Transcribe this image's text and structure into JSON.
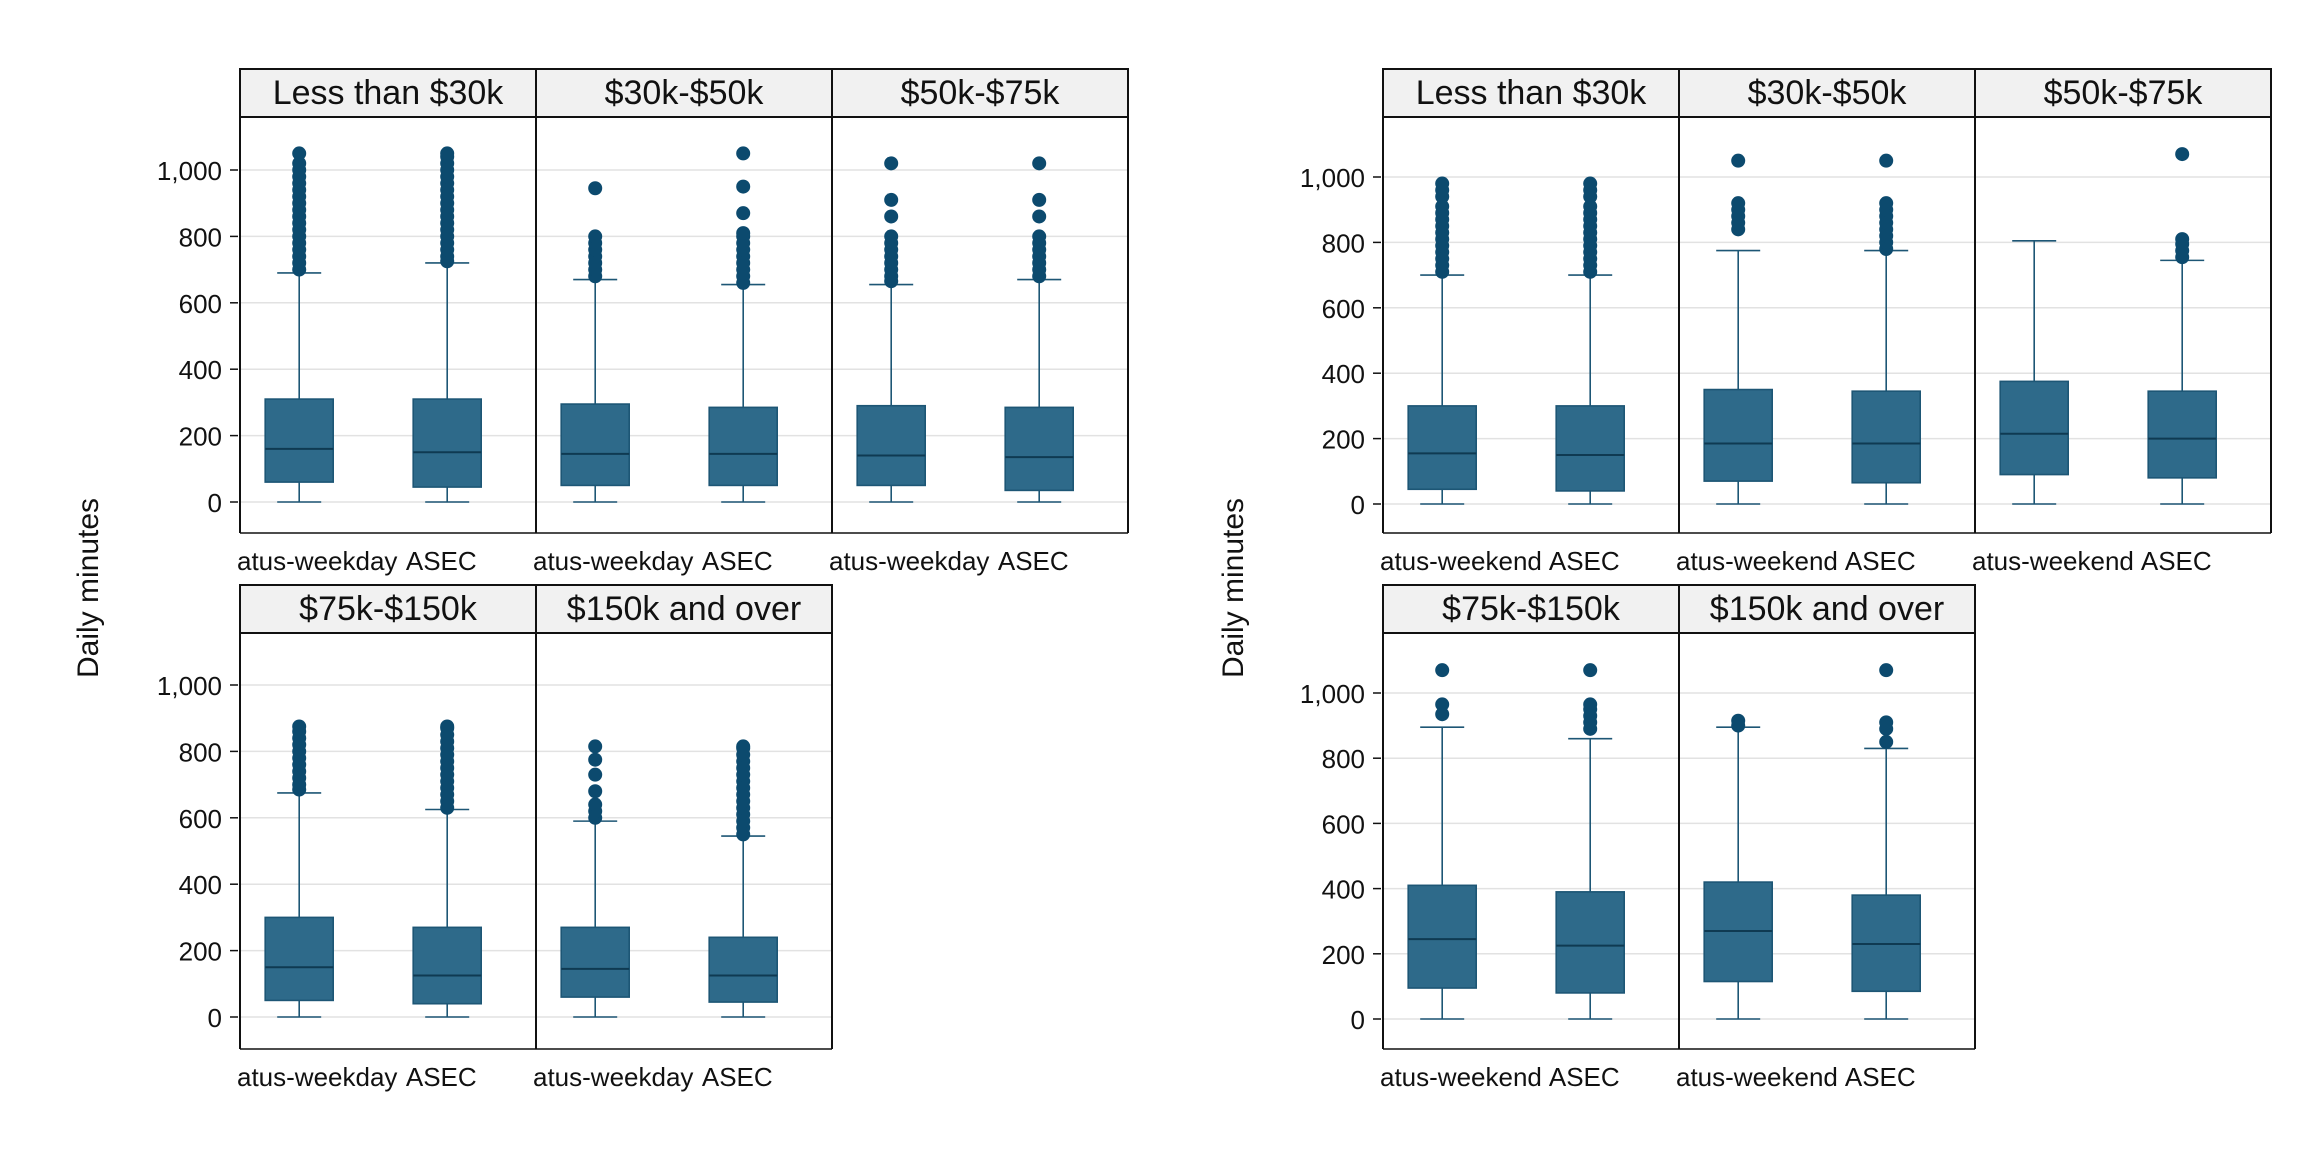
{
  "colors": {
    "box_fill": "#2e6a8a",
    "box_stroke": "#1d5675",
    "outlier": "#0c4a6e",
    "grid": "#e2e2e2",
    "strip_fill": "#f1f1f1",
    "frame": "#111111"
  },
  "chart_data": [
    {
      "type": "box",
      "ylabel": "Daily minutes",
      "yticks": [
        0,
        200,
        400,
        600,
        800,
        "1,000"
      ],
      "ylim": [
        -100,
        1110
      ],
      "categories": [
        "atus-weekday",
        "ASEC"
      ],
      "panels": [
        {
          "title": "Less than $30k",
          "boxes": [
            {
              "category": "atus-weekday",
              "min": 0,
              "q1": 60,
              "median": 160,
              "q3": 310,
              "whisker_high": 690,
              "outliers": [
                700,
                720,
                740,
                760,
                780,
                800,
                820,
                840,
                860,
                880,
                900,
                920,
                940,
                960,
                980,
                1000,
                1020,
                1050
              ]
            },
            {
              "category": "ASEC",
              "min": 0,
              "q1": 45,
              "median": 150,
              "q3": 310,
              "whisker_high": 720,
              "outliers": [
                725,
                740,
                760,
                780,
                800,
                820,
                840,
                860,
                880,
                900,
                920,
                940,
                960,
                980,
                1000,
                1020,
                1040,
                1050
              ]
            }
          ]
        },
        {
          "title": "$30k-$50k",
          "boxes": [
            {
              "category": "atus-weekday",
              "min": 0,
              "q1": 50,
              "median": 145,
              "q3": 295,
              "whisker_high": 670,
              "outliers": [
                680,
                700,
                720,
                740,
                760,
                780,
                800,
                945
              ]
            },
            {
              "category": "ASEC",
              "min": 0,
              "q1": 50,
              "median": 145,
              "q3": 285,
              "whisker_high": 655,
              "outliers": [
                660,
                680,
                700,
                720,
                740,
                760,
                780,
                800,
                810,
                870,
                950,
                1050
              ]
            }
          ]
        },
        {
          "title": "$50k-$75k",
          "boxes": [
            {
              "category": "atus-weekday",
              "min": 0,
              "q1": 50,
              "median": 140,
              "q3": 290,
              "whisker_high": 655,
              "outliers": [
                665,
                680,
                700,
                720,
                740,
                760,
                780,
                800,
                860,
                910,
                1020
              ]
            },
            {
              "category": "ASEC",
              "min": 0,
              "q1": 35,
              "median": 135,
              "q3": 285,
              "whisker_high": 670,
              "outliers": [
                680,
                700,
                720,
                740,
                760,
                780,
                800,
                860,
                910,
                1020
              ]
            }
          ]
        },
        {
          "title": "$75k-$150k",
          "boxes": [
            {
              "category": "atus-weekday",
              "min": 0,
              "q1": 50,
              "median": 150,
              "q3": 300,
              "whisker_high": 675,
              "outliers": [
                685,
                700,
                720,
                740,
                760,
                780,
                800,
                820,
                840,
                860,
                875
              ]
            },
            {
              "category": "ASEC",
              "min": 0,
              "q1": 40,
              "median": 125,
              "q3": 270,
              "whisker_high": 625,
              "outliers": [
                630,
                650,
                670,
                690,
                710,
                730,
                750,
                770,
                790,
                810,
                830,
                850,
                870,
                875
              ]
            }
          ]
        },
        {
          "title": "$150k and over",
          "boxes": [
            {
              "category": "atus-weekday",
              "min": 0,
              "q1": 60,
              "median": 145,
              "q3": 270,
              "whisker_high": 590,
              "outliers": [
                600,
                620,
                640,
                680,
                730,
                775,
                815
              ]
            },
            {
              "category": "ASEC",
              "min": 0,
              "q1": 45,
              "median": 125,
              "q3": 240,
              "whisker_high": 545,
              "outliers": [
                550,
                570,
                590,
                610,
                630,
                650,
                670,
                690,
                710,
                730,
                750,
                770,
                790,
                810,
                815
              ]
            }
          ]
        }
      ]
    },
    {
      "type": "box",
      "ylabel": "Daily minutes",
      "yticks": [
        0,
        200,
        400,
        600,
        800,
        "1,000"
      ],
      "ylim": [
        -100,
        1130
      ],
      "categories": [
        "atus-weekend",
        "ASEC"
      ],
      "panels": [
        {
          "title": "Less than $30k",
          "boxes": [
            {
              "category": "atus-weekend",
              "min": 0,
              "q1": 45,
              "median": 155,
              "q3": 300,
              "whisker_high": 700,
              "outliers": [
                710,
                730,
                750,
                770,
                790,
                810,
                830,
                850,
                870,
                890,
                910,
                940,
                960,
                980
              ]
            },
            {
              "category": "ASEC",
              "min": 0,
              "q1": 40,
              "median": 150,
              "q3": 300,
              "whisker_high": 700,
              "outliers": [
                710,
                730,
                750,
                770,
                790,
                810,
                830,
                850,
                870,
                890,
                910,
                940,
                960,
                980
              ]
            }
          ]
        },
        {
          "title": "$30k-$50k",
          "boxes": [
            {
              "category": "atus-weekend",
              "min": 0,
              "q1": 70,
              "median": 185,
              "q3": 350,
              "whisker_high": 775,
              "outliers": [
                840,
                860,
                880,
                900,
                920,
                1050
              ]
            },
            {
              "category": "ASEC",
              "min": 0,
              "q1": 65,
              "median": 185,
              "q3": 345,
              "whisker_high": 775,
              "outliers": [
                780,
                800,
                820,
                840,
                860,
                880,
                900,
                920,
                1050
              ]
            }
          ]
        },
        {
          "title": "$50k-$75k",
          "boxes": [
            {
              "category": "atus-weekend",
              "min": 0,
              "q1": 90,
              "median": 215,
              "q3": 375,
              "whisker_high": 805,
              "outliers": []
            },
            {
              "category": "ASEC",
              "min": 0,
              "q1": 80,
              "median": 200,
              "q3": 345,
              "whisker_high": 745,
              "outliers": [
                755,
                775,
                795,
                810,
                1070
              ]
            }
          ]
        },
        {
          "title": "$75k-$150k",
          "boxes": [
            {
              "category": "atus-weekend",
              "min": 0,
              "q1": 95,
              "median": 245,
              "q3": 410,
              "whisker_high": 895,
              "outliers": [
                935,
                965,
                1070
              ]
            },
            {
              "category": "ASEC",
              "min": 0,
              "q1": 80,
              "median": 225,
              "q3": 390,
              "whisker_high": 860,
              "outliers": [
                890,
                910,
                930,
                950,
                965,
                1070
              ]
            }
          ]
        },
        {
          "title": "$150k and over",
          "boxes": [
            {
              "category": "atus-weekend",
              "min": 0,
              "q1": 115,
              "median": 270,
              "q3": 420,
              "whisker_high": 895,
              "outliers": [
                900,
                915
              ]
            },
            {
              "category": "ASEC",
              "min": 0,
              "q1": 85,
              "median": 230,
              "q3": 380,
              "whisker_high": 830,
              "outliers": [
                850,
                890,
                910,
                1070
              ]
            }
          ]
        }
      ]
    }
  ]
}
